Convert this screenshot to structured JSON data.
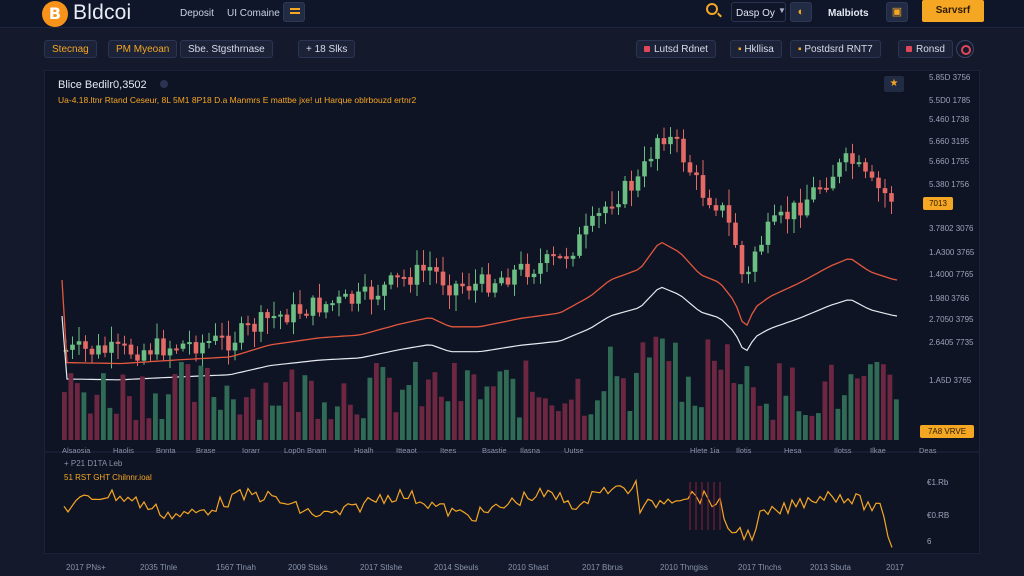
{
  "header": {
    "brand": "Bldcoi",
    "logo_glyph": "B",
    "nav": [
      "Deposit",
      "UI Comaine"
    ],
    "day_select": "Dasp Oy",
    "markets": "Malbiots",
    "cta": "Sarvsrf"
  },
  "toolbar": {
    "chips": [
      "Stecnag",
      "PM Myeoan",
      "Sbe. Stgsthrnase",
      "+ 18 Slks"
    ],
    "right_chips": [
      "Lutsd Rdnet",
      "Hkllisa",
      "Postdsrd RNT7",
      "Ronsd"
    ]
  },
  "chart": {
    "title": "Blice Bedilr0,3502",
    "subtitle": "Ua-4.18.ltnr Rtand Ceseur, 8L 5M1 8P18 D.a Manmrs E mattbe jxe! ut Harque oblrbouzd ertnr2",
    "price_tag": "7013",
    "volume_tag": "7A8 VRVE",
    "oscillator_title": "+ P21 D1TA Leb",
    "oscillator_subtitle": "51 RST GHT Chilnnr.ioal",
    "y_labels": [
      "5.85D 3756",
      "5.5D0 1785",
      "5.460 1738",
      "5.660 3195",
      "5.660 1755",
      "5.380 1756",
      "3.7802 3076",
      "1.A300 3765",
      "1.4000 7765",
      "1.980 3766",
      "2.7050 3795",
      "2.6405 7735"
    ],
    "x_labels": [
      "Alsaosia",
      "Haolis",
      "Bnnta",
      "Brase",
      "Iorarr",
      "Lop0n Bnam",
      "Hoalh",
      "Itteaot",
      "Itees",
      "Bsastie",
      "Ilasna",
      "Uutse",
      "Hlete 1ia",
      "Ilotis",
      "Hesa",
      "Ilotss",
      "Ilkae"
    ],
    "osc_y_labels": [
      "€1.Rb",
      "€0.RB",
      "6"
    ],
    "bottom_labels": [
      "2017 PNs+",
      "2035 Tlnle",
      "1567 Tlnah",
      "2009 Stsks",
      "2017 Stlshe",
      "2014 Sbeuls",
      "2010 Shast",
      "2017 Bbrus",
      "2010 Thngiss",
      "2017 Tlnchs",
      "2013 Sbuta",
      "2017"
    ]
  },
  "colors": {
    "accent": "#f5a623",
    "up": "#6cbf84",
    "down": "#e56a66",
    "vol_up": "#2f6b55",
    "vol_down": "#6e2740"
  }
}
